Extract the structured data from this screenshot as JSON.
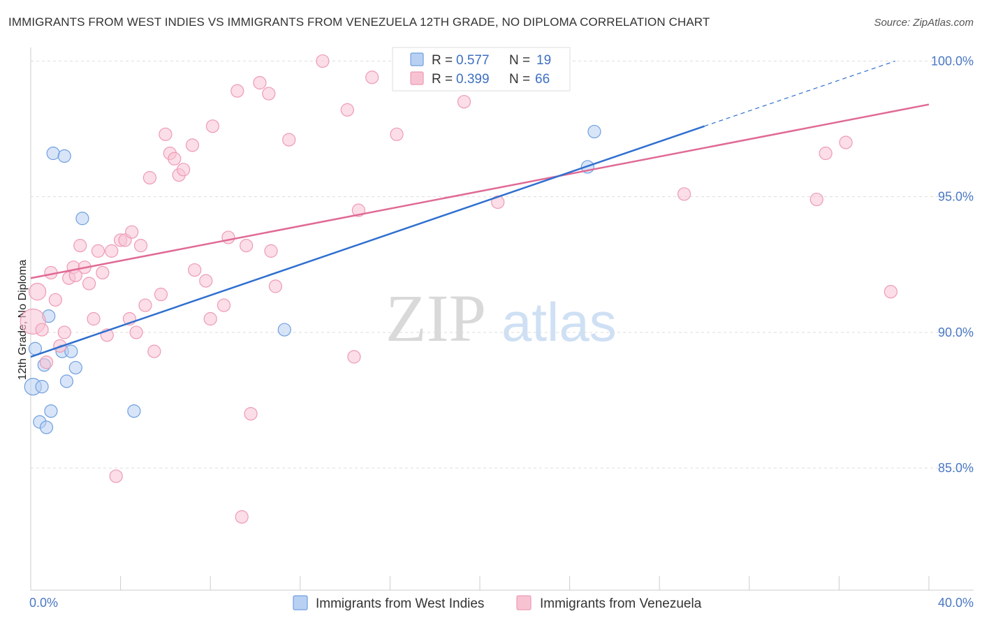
{
  "title": "IMMIGRANTS FROM WEST INDIES VS IMMIGRANTS FROM VENEZUELA 12TH GRADE, NO DIPLOMA CORRELATION CHART",
  "source": "Source: ZipAtlas.com",
  "watermark": {
    "zip": "ZIP",
    "atlas": "atlas"
  },
  "colors": {
    "west_indies_fill": "#b8d0f2",
    "west_indies_stroke": "#6f9fe0",
    "west_indies_line": "#2f6fcf",
    "venezuela_fill": "#f7c3d3",
    "venezuela_stroke": "#ee9ab5",
    "venezuela_line": "#e06a95",
    "tick_text": "#4a78c4",
    "grid": "#dddddd"
  },
  "legend": {
    "rows": [
      {
        "r_label": "R = ",
        "r_value": "0.577",
        "n_label": "N = ",
        "n_value": "19"
      },
      {
        "r_label": "R = ",
        "r_value": "0.399",
        "n_label": "N = ",
        "n_value": "66"
      }
    ]
  },
  "chart_data": {
    "type": "scatter",
    "ylabel": "12th Grade, No Diploma",
    "xlim": [
      0,
      40
    ],
    "ylim": [
      80.5,
      100.5
    ],
    "x_tick_labels": [
      {
        "value": 0,
        "label": "0.0%"
      },
      {
        "value": 40,
        "label": "40.0%"
      }
    ],
    "y_tick_labels": [
      {
        "value": 85,
        "label": "85.0%"
      },
      {
        "value": 90,
        "label": "90.0%"
      },
      {
        "value": 95,
        "label": "95.0%"
      },
      {
        "value": 100,
        "label": "100.0%"
      }
    ],
    "series": [
      {
        "name": "Immigrants from West Indies",
        "trend": {
          "x0": 0,
          "y0": 89.1,
          "x1": 30,
          "y1": 97.6,
          "dash_to_x": 38.5,
          "dash_to_y": 100.0
        },
        "points": [
          [
            0.1,
            88.0,
            12
          ],
          [
            0.2,
            89.4,
            9
          ],
          [
            0.4,
            86.7,
            9
          ],
          [
            0.5,
            88.0,
            9
          ],
          [
            0.6,
            88.8,
            9
          ],
          [
            0.7,
            86.5,
            9
          ],
          [
            0.8,
            90.6,
            9
          ],
          [
            0.9,
            87.1,
            9
          ],
          [
            1.0,
            96.6,
            9
          ],
          [
            1.4,
            89.3,
            9
          ],
          [
            1.5,
            96.5,
            9
          ],
          [
            1.6,
            88.2,
            9
          ],
          [
            1.8,
            89.3,
            9
          ],
          [
            2.0,
            88.7,
            9
          ],
          [
            2.3,
            94.2,
            9
          ],
          [
            4.6,
            87.1,
            9
          ],
          [
            11.3,
            90.1,
            9
          ],
          [
            24.8,
            96.1,
            9
          ],
          [
            25.1,
            97.4,
            9
          ]
        ]
      },
      {
        "name": "Immigrants from Venezuela",
        "trend": {
          "x0": 0,
          "y0": 92.0,
          "x1": 40,
          "y1": 98.4
        },
        "points": [
          [
            0.1,
            90.4,
            18
          ],
          [
            0.3,
            91.5,
            12
          ],
          [
            0.5,
            90.1,
            9
          ],
          [
            0.7,
            88.9,
            9
          ],
          [
            0.9,
            92.2,
            9
          ],
          [
            1.1,
            91.2,
            9
          ],
          [
            1.3,
            89.5,
            9
          ],
          [
            1.5,
            90.0,
            9
          ],
          [
            1.7,
            92.0,
            9
          ],
          [
            1.9,
            92.4,
            9
          ],
          [
            2.0,
            92.1,
            9
          ],
          [
            2.2,
            93.2,
            9
          ],
          [
            2.4,
            92.4,
            9
          ],
          [
            2.6,
            91.8,
            9
          ],
          [
            2.8,
            90.5,
            9
          ],
          [
            3.0,
            93.0,
            9
          ],
          [
            3.2,
            92.2,
            9
          ],
          [
            3.4,
            89.9,
            9
          ],
          [
            3.6,
            93.0,
            9
          ],
          [
            3.8,
            84.7,
            9
          ],
          [
            4.0,
            93.4,
            9
          ],
          [
            4.2,
            93.4,
            9
          ],
          [
            4.4,
            90.5,
            9
          ],
          [
            4.5,
            93.7,
            9
          ],
          [
            4.7,
            90.0,
            9
          ],
          [
            4.9,
            93.2,
            9
          ],
          [
            5.1,
            91.0,
            9
          ],
          [
            5.3,
            95.7,
            9
          ],
          [
            5.5,
            89.3,
            9
          ],
          [
            5.8,
            91.4,
            9
          ],
          [
            6.0,
            97.3,
            9
          ],
          [
            6.2,
            96.6,
            9
          ],
          [
            6.4,
            96.4,
            9
          ],
          [
            6.6,
            95.8,
            9
          ],
          [
            6.8,
            96.0,
            9
          ],
          [
            7.2,
            96.9,
            9
          ],
          [
            7.3,
            92.3,
            9
          ],
          [
            7.8,
            91.9,
            9
          ],
          [
            8.0,
            90.5,
            9
          ],
          [
            8.1,
            97.6,
            9
          ],
          [
            8.6,
            91.0,
            9
          ],
          [
            8.8,
            93.5,
            9
          ],
          [
            9.2,
            98.9,
            9
          ],
          [
            9.4,
            83.2,
            9
          ],
          [
            9.6,
            93.2,
            9
          ],
          [
            9.8,
            87.0,
            9
          ],
          [
            10.2,
            99.2,
            9
          ],
          [
            10.6,
            98.8,
            9
          ],
          [
            10.7,
            93.0,
            9
          ],
          [
            10.9,
            91.7,
            9
          ],
          [
            11.5,
            97.1,
            9
          ],
          [
            13.0,
            100.0,
            9
          ],
          [
            14.1,
            98.2,
            9
          ],
          [
            14.4,
            89.1,
            9
          ],
          [
            14.6,
            94.5,
            9
          ],
          [
            15.2,
            99.4,
            9
          ],
          [
            16.3,
            97.3,
            9
          ],
          [
            18.0,
            100.0,
            9
          ],
          [
            19.3,
            98.5,
            9
          ],
          [
            20.8,
            94.8,
            9
          ],
          [
            22.0,
            100.0,
            9
          ],
          [
            29.1,
            95.1,
            9
          ],
          [
            35.0,
            94.9,
            9
          ],
          [
            35.4,
            96.6,
            9
          ],
          [
            36.3,
            97.0,
            9
          ],
          [
            38.3,
            91.5,
            9
          ]
        ]
      }
    ],
    "legend_position": "top-center"
  }
}
